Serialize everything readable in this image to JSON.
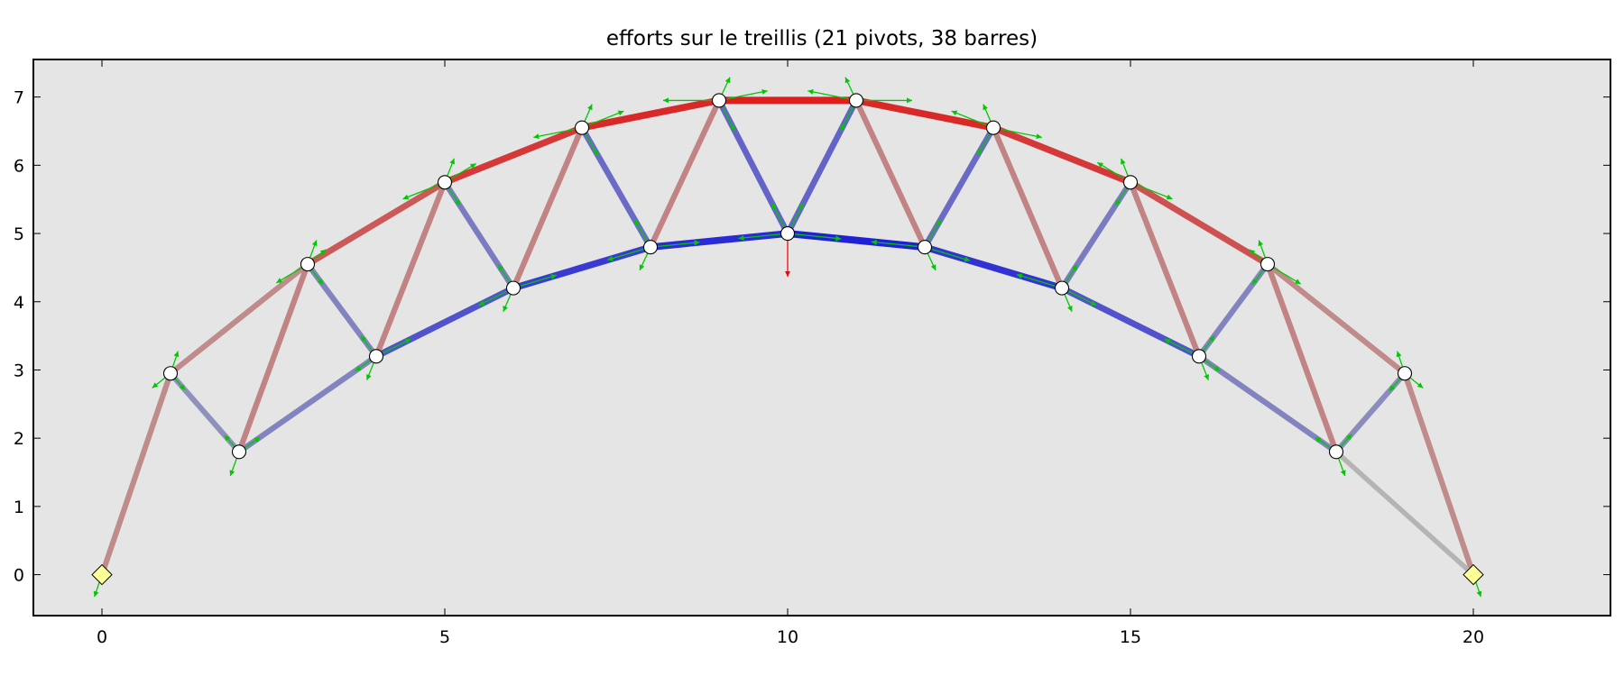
{
  "chart_data": {
    "type": "scatter",
    "title": "efforts sur le treillis (21 pivots, 38 barres)",
    "xlabel": "",
    "ylabel": "",
    "xlim": [
      -1,
      22
    ],
    "ylim": [
      -0.6,
      7.55
    ],
    "xticks": [
      0,
      5,
      10,
      15,
      20
    ],
    "yticks": [
      0,
      1,
      2,
      3,
      4,
      5,
      6,
      7
    ],
    "grid": false,
    "background": "#e5e5e5",
    "colors": {
      "tension": "#dc1e1e",
      "compression": "#2020d8",
      "unloaded": "#b4b4b4",
      "node_fill": "#ffffff",
      "support_fill": "#ffff99",
      "force_arrow": "#00c800",
      "load_arrow": "#ff0000"
    },
    "nodes": [
      {
        "id": 0,
        "x": 0,
        "y": 0,
        "support": true
      },
      {
        "id": 1,
        "x": 1,
        "y": 2.95
      },
      {
        "id": 2,
        "x": 2,
        "y": 1.8
      },
      {
        "id": 3,
        "x": 3,
        "y": 4.55
      },
      {
        "id": 4,
        "x": 4,
        "y": 3.2
      },
      {
        "id": 5,
        "x": 5,
        "y": 5.75
      },
      {
        "id": 6,
        "x": 6,
        "y": 4.2
      },
      {
        "id": 7,
        "x": 7,
        "y": 6.55
      },
      {
        "id": 8,
        "x": 8,
        "y": 4.8
      },
      {
        "id": 9,
        "x": 9,
        "y": 6.95
      },
      {
        "id": 10,
        "x": 10,
        "y": 5.0
      },
      {
        "id": 11,
        "x": 11,
        "y": 6.95
      },
      {
        "id": 12,
        "x": 12,
        "y": 4.8
      },
      {
        "id": 13,
        "x": 13,
        "y": 6.55
      },
      {
        "id": 14,
        "x": 14,
        "y": 4.2
      },
      {
        "id": 15,
        "x": 15,
        "y": 5.75
      },
      {
        "id": 16,
        "x": 16,
        "y": 3.2
      },
      {
        "id": 17,
        "x": 17,
        "y": 4.55
      },
      {
        "id": 18,
        "x": 18,
        "y": 1.8
      },
      {
        "id": 19,
        "x": 19,
        "y": 2.95
      },
      {
        "id": 20,
        "x": 20,
        "y": 0,
        "support": true
      }
    ],
    "bars": [
      {
        "a": 0,
        "b": 1,
        "effort": 0.25
      },
      {
        "a": 1,
        "b": 3,
        "effort": 0.25
      },
      {
        "a": 3,
        "b": 5,
        "effort": 0.55
      },
      {
        "a": 5,
        "b": 7,
        "effort": 0.75
      },
      {
        "a": 7,
        "b": 9,
        "effort": 0.85
      },
      {
        "a": 9,
        "b": 11,
        "effort": 1.0
      },
      {
        "a": 11,
        "b": 13,
        "effort": 0.85
      },
      {
        "a": 13,
        "b": 15,
        "effort": 0.75
      },
      {
        "a": 15,
        "b": 17,
        "effort": 0.6
      },
      {
        "a": 17,
        "b": 19,
        "effort": 0.25
      },
      {
        "a": 19,
        "b": 20,
        "effort": 0.25
      },
      {
        "a": 1,
        "b": 2,
        "effort": -0.22
      },
      {
        "a": 2,
        "b": 4,
        "effort": -0.3
      },
      {
        "a": 4,
        "b": 6,
        "effort": -0.6
      },
      {
        "a": 6,
        "b": 8,
        "effort": -0.75
      },
      {
        "a": 8,
        "b": 10,
        "effort": -0.85
      },
      {
        "a": 10,
        "b": 12,
        "effort": -0.95
      },
      {
        "a": 12,
        "b": 14,
        "effort": -0.8
      },
      {
        "a": 14,
        "b": 16,
        "effort": -0.6
      },
      {
        "a": 16,
        "b": 18,
        "effort": -0.3
      },
      {
        "a": 18,
        "b": 20,
        "effort": 0
      },
      {
        "a": 18,
        "b": 19,
        "effort": -0.25
      },
      {
        "a": 2,
        "b": 3,
        "effort": 0.3
      },
      {
        "a": 3,
        "b": 4,
        "effort": -0.3
      },
      {
        "a": 4,
        "b": 5,
        "effort": 0.3
      },
      {
        "a": 5,
        "b": 6,
        "effort": -0.35
      },
      {
        "a": 6,
        "b": 7,
        "effort": 0.3
      },
      {
        "a": 7,
        "b": 8,
        "effort": -0.45
      },
      {
        "a": 8,
        "b": 9,
        "effort": 0.3
      },
      {
        "a": 9,
        "b": 10,
        "effort": -0.5
      },
      {
        "a": 10,
        "b": 11,
        "effort": -0.5
      },
      {
        "a": 11,
        "b": 12,
        "effort": 0.3
      },
      {
        "a": 12,
        "b": 13,
        "effort": -0.45
      },
      {
        "a": 13,
        "b": 14,
        "effort": 0.3
      },
      {
        "a": 14,
        "b": 15,
        "effort": -0.35
      },
      {
        "a": 15,
        "b": 16,
        "effort": 0.3
      },
      {
        "a": 16,
        "b": 17,
        "effort": -0.3
      },
      {
        "a": 17,
        "b": 18,
        "effort": 0.3
      }
    ],
    "load": {
      "node": 10,
      "fx": 0,
      "fy": -0.5
    }
  }
}
